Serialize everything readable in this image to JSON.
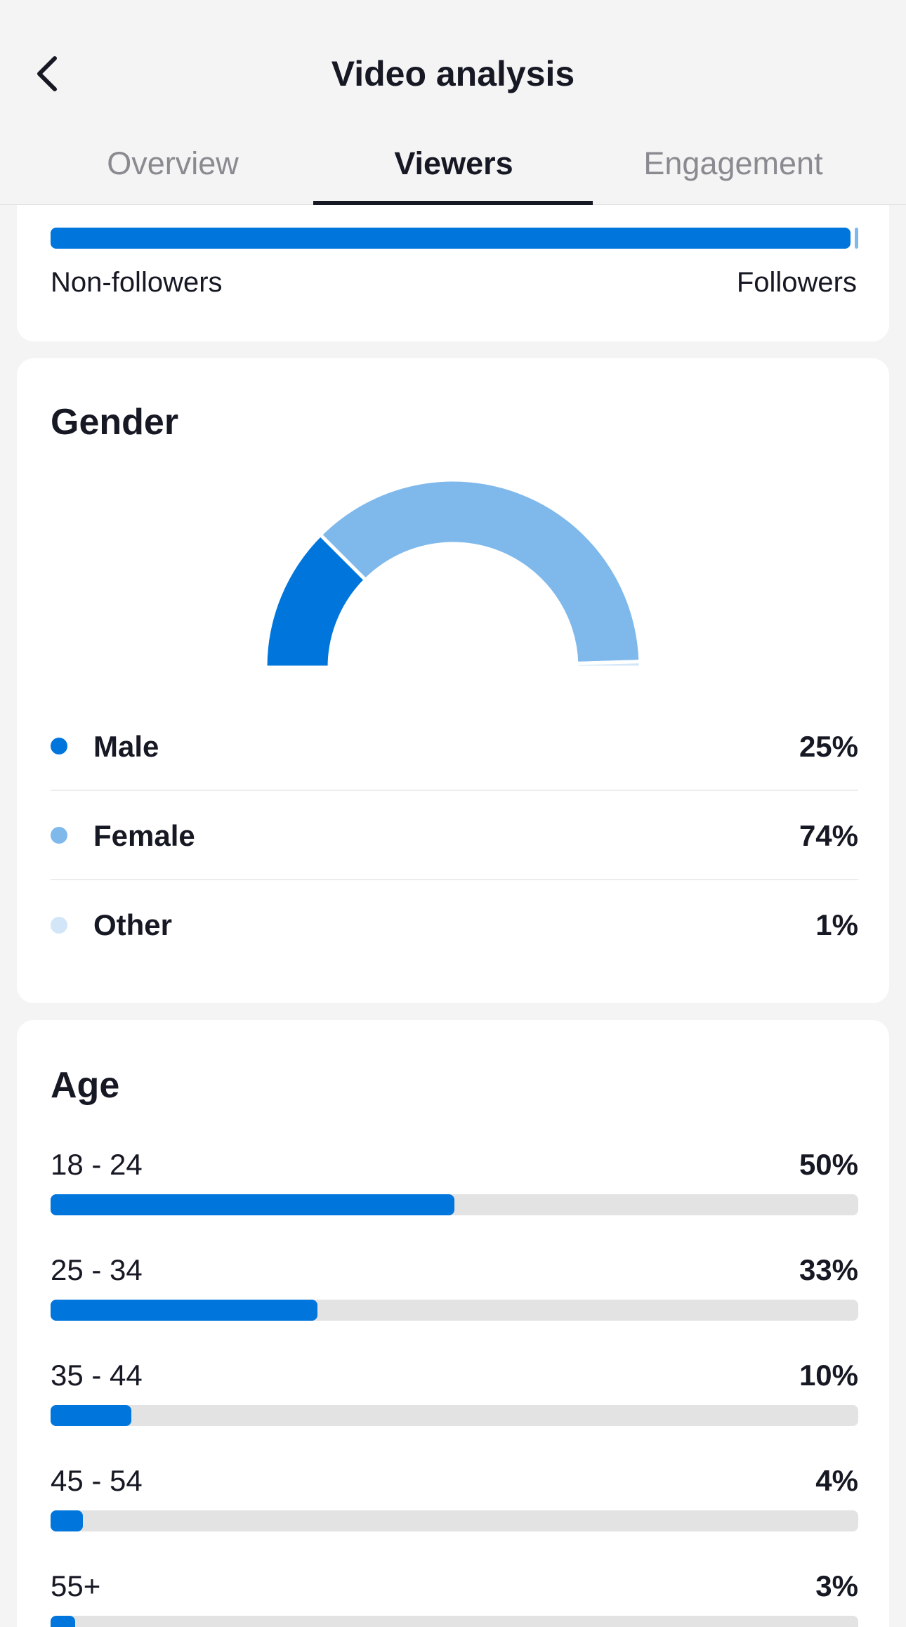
{
  "header": {
    "title": "Video analysis",
    "back_icon": "chevron-left-icon"
  },
  "tabs": [
    {
      "label": "Overview",
      "active": false
    },
    {
      "label": "Viewers",
      "active": true
    },
    {
      "label": "Engagement",
      "active": false
    }
  ],
  "followers": {
    "non_followers_label": "Non-followers",
    "followers_label": "Followers",
    "non_followers_fraction": 0.99
  },
  "gender": {
    "title": "Gender",
    "items": [
      {
        "label": "Male",
        "value": "25%",
        "percent": 25,
        "color": "#0075db"
      },
      {
        "label": "Female",
        "value": "74%",
        "percent": 74,
        "color": "#7fb9ec"
      },
      {
        "label": "Other",
        "value": "1%",
        "percent": 1,
        "color": "#d2e6f8"
      }
    ]
  },
  "age": {
    "title": "Age",
    "items": [
      {
        "label": "18 - 24",
        "value": "50%",
        "percent": 50
      },
      {
        "label": "25 - 34",
        "value": "33%",
        "percent": 33
      },
      {
        "label": "35 - 44",
        "value": "10%",
        "percent": 10
      },
      {
        "label": "45 - 54",
        "value": "4%",
        "percent": 4
      },
      {
        "label": "55+",
        "value": "3%",
        "percent": 3
      }
    ]
  },
  "colors": {
    "accent": "#0075db",
    "accent_light": "#7fb9ec",
    "track": "#e3e3e3",
    "background": "#f4f4f4"
  }
}
